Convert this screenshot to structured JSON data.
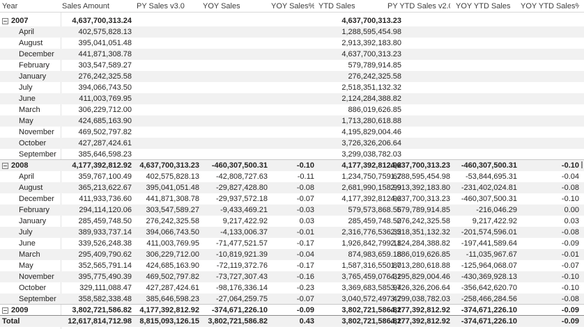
{
  "columns": [
    "Year",
    "Sales Amount",
    "PY Sales v3.0",
    "YOY Sales",
    "YOY Sales%",
    "YTD Sales",
    "PY YTD Sales v2.0",
    "YOY YTD Sales",
    "YOY YTD Sales%"
  ],
  "groups": [
    {
      "year": "2007",
      "values": [
        "4,637,700,313.24",
        "",
        "",
        "",
        "4,637,700,313.23",
        "",
        "",
        ""
      ],
      "months": [
        {
          "month": "April",
          "values": [
            "402,575,828.13",
            "",
            "",
            "",
            "1,288,595,454.98",
            "",
            "",
            ""
          ]
        },
        {
          "month": "August",
          "values": [
            "395,041,051.48",
            "",
            "",
            "",
            "2,913,392,183.80",
            "",
            "",
            ""
          ]
        },
        {
          "month": "December",
          "values": [
            "441,871,308.78",
            "",
            "",
            "",
            "4,637,700,313.23",
            "",
            "",
            ""
          ]
        },
        {
          "month": "February",
          "values": [
            "303,547,589.27",
            "",
            "",
            "",
            "579,789,914.85",
            "",
            "",
            ""
          ]
        },
        {
          "month": "January",
          "values": [
            "276,242,325.58",
            "",
            "",
            "",
            "276,242,325.58",
            "",
            "",
            ""
          ]
        },
        {
          "month": "July",
          "values": [
            "394,066,743.50",
            "",
            "",
            "",
            "2,518,351,132.32",
            "",
            "",
            ""
          ]
        },
        {
          "month": "June",
          "values": [
            "411,003,769.95",
            "",
            "",
            "",
            "2,124,284,388.82",
            "",
            "",
            ""
          ]
        },
        {
          "month": "March",
          "values": [
            "306,229,712.00",
            "",
            "",
            "",
            "886,019,626.85",
            "",
            "",
            ""
          ]
        },
        {
          "month": "May",
          "values": [
            "424,685,163.90",
            "",
            "",
            "",
            "1,713,280,618.88",
            "",
            "",
            ""
          ]
        },
        {
          "month": "November",
          "values": [
            "469,502,797.82",
            "",
            "",
            "",
            "4,195,829,004.46",
            "",
            "",
            ""
          ]
        },
        {
          "month": "October",
          "values": [
            "427,287,424.61",
            "",
            "",
            "",
            "3,726,326,206.64",
            "",
            "",
            ""
          ]
        },
        {
          "month": "September",
          "values": [
            "385,646,598.23",
            "",
            "",
            "",
            "3,299,038,782.03",
            "",
            "",
            ""
          ]
        }
      ]
    },
    {
      "year": "2008",
      "values": [
        "4,177,392,812.92",
        "4,637,700,313.23",
        "-460,307,500.31",
        "-0.10",
        "4,177,392,812.92",
        "4,637,700,313.23",
        "-460,307,500.31",
        "-0.10"
      ],
      "months": [
        {
          "month": "April",
          "values": [
            "359,767,100.49",
            "402,575,828.13",
            "-42,808,727.63",
            "-0.11",
            "1,234,750,759.67",
            "1,288,595,454.98",
            "-53,844,695.31",
            "-0.04"
          ]
        },
        {
          "month": "August",
          "values": [
            "365,213,622.67",
            "395,041,051.48",
            "-29,827,428.80",
            "-0.08",
            "2,681,990,158.99",
            "2,913,392,183.80",
            "-231,402,024.81",
            "-0.08"
          ]
        },
        {
          "month": "December",
          "values": [
            "411,933,736.60",
            "441,871,308.78",
            "-29,937,572.18",
            "-0.07",
            "4,177,392,812.92",
            "4,637,700,313.23",
            "-460,307,500.31",
            "-0.10"
          ]
        },
        {
          "month": "February",
          "values": [
            "294,114,120.06",
            "303,547,589.27",
            "-9,433,469.21",
            "-0.03",
            "579,573,868.56",
            "579,789,914.85",
            "-216,046.29",
            "0.00"
          ]
        },
        {
          "month": "January",
          "values": [
            "285,459,748.50",
            "276,242,325.58",
            "9,217,422.92",
            "0.03",
            "285,459,748.50",
            "276,242,325.58",
            "9,217,422.92",
            "0.03"
          ]
        },
        {
          "month": "July",
          "values": [
            "389,933,737.14",
            "394,066,743.50",
            "-4,133,006.37",
            "-0.01",
            "2,316,776,536.32",
            "2,518,351,132.32",
            "-201,574,596.01",
            "-0.08"
          ]
        },
        {
          "month": "June",
          "values": [
            "339,526,248.38",
            "411,003,769.95",
            "-71,477,521.57",
            "-0.17",
            "1,926,842,799.18",
            "2,124,284,388.82",
            "-197,441,589.64",
            "-0.09"
          ]
        },
        {
          "month": "March",
          "values": [
            "295,409,790.62",
            "306,229,712.00",
            "-10,819,921.39",
            "-0.04",
            "874,983,659.18",
            "886,019,626.85",
            "-11,035,967.67",
            "-0.01"
          ]
        },
        {
          "month": "May",
          "values": [
            "352,565,791.14",
            "424,685,163.90",
            "-72,119,372.76",
            "-0.17",
            "1,587,316,550.80",
            "1,713,280,618.88",
            "-125,964,068.07",
            "-0.07"
          ]
        },
        {
          "month": "November",
          "values": [
            "395,775,490.39",
            "469,502,797.82",
            "-73,727,307.43",
            "-0.16",
            "3,765,459,076.32",
            "4,195,829,004.46",
            "-430,369,928.13",
            "-0.10"
          ]
        },
        {
          "month": "October",
          "values": [
            "329,111,088.47",
            "427,287,424.61",
            "-98,176,336.14",
            "-0.23",
            "3,369,683,585.94",
            "3,726,326,206.64",
            "-356,642,620.70",
            "-0.10"
          ]
        },
        {
          "month": "September",
          "values": [
            "358,582,338.48",
            "385,646,598.23",
            "-27,064,259.75",
            "-0.07",
            "3,040,572,497.47",
            "3,299,038,782.03",
            "-258,466,284.56",
            "-0.08"
          ]
        }
      ]
    },
    {
      "year": "2009",
      "values": [
        "3,802,721,586.82",
        "4,177,392,812.92",
        "-374,671,226.10",
        "-0.09",
        "3,802,721,586.82",
        "4,177,392,812.92",
        "-374,671,226.10",
        "-0.09"
      ],
      "months": []
    }
  ],
  "total": {
    "label": "Total",
    "values": [
      "12,617,814,712.98",
      "8,815,093,126.15",
      "3,802,721,586.82",
      "0.43",
      "3,802,721,586.82",
      "4,177,392,812.92",
      "-374,671,226.10",
      "-0.09"
    ]
  }
}
